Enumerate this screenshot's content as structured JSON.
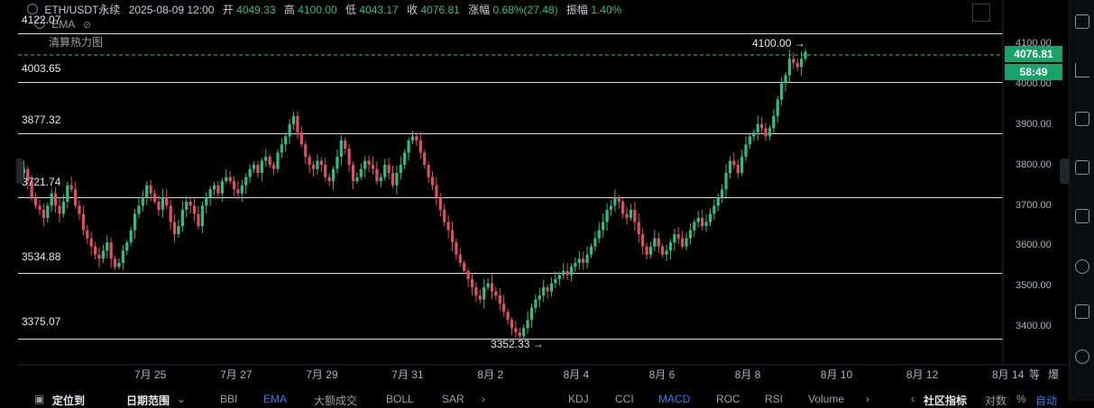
{
  "header": {
    "symbol": "ETH/USDT永续",
    "timestamp": "2025-08-09 12:00",
    "open_label": "开",
    "open": "4049.33",
    "high_label": "高",
    "high": "4100.00",
    "low_label": "低",
    "low": "4043.17",
    "close_label": "收",
    "close": "4076.81",
    "change_label": "涨幅",
    "change": "0.68%(27.48)",
    "amp_label": "振幅",
    "amp": "1.40%"
  },
  "indicators": {
    "ema": "EMA",
    "heatmap": "清算热力图"
  },
  "levels": {
    "top": "4122.07",
    "l1": "4003.65",
    "l2": "3877.32",
    "l3": "3721.74",
    "l4": "3534.88",
    "l5": "3375.07"
  },
  "annotations": {
    "high": "4100.00",
    "low": "3352.33",
    "arrow": "→"
  },
  "price_axis": {
    "ticks": [
      "4100.00",
      "4000.00",
      "3900.00",
      "3800.00",
      "3700.00",
      "3600.00",
      "3500.00",
      "3400.00"
    ],
    "current": "4076.81",
    "countdown": "58:49"
  },
  "time_axis": [
    "7月 25",
    "7月 27",
    "7月 29",
    "7月 31",
    "8月 2",
    "8月 4",
    "8月 6",
    "8月 8",
    "8月 10",
    "8月 12",
    "8月 14"
  ],
  "axis_controls": {
    "a": "等",
    "b": "爆"
  },
  "bottom": {
    "locate": "定位到",
    "date_range": "日期范围",
    "tabs_left": [
      "BBI",
      "EMA",
      "大额成交",
      "BOLL",
      "SAR"
    ],
    "tabs_right": [
      "KDJ",
      "CCI",
      "MACD",
      "ROC",
      "RSI",
      "Volume"
    ],
    "community": "社区指标",
    "log": "对数",
    "percent": "%",
    "auto": "自动"
  },
  "colors": {
    "up": "#2ebd85",
    "down": "#e04f5f",
    "accent": "#2f7cf6",
    "tag": "#1aa26b"
  },
  "chart_data": {
    "type": "candlestick",
    "title": "",
    "xlabel": "",
    "ylabel": "",
    "x_start": "2025-07-24",
    "x_end": "2025-08-09",
    "ylim": [
      3330,
      4160
    ],
    "closes": [
      3780,
      3790,
      3760,
      3720,
      3700,
      3690,
      3670,
      3700,
      3730,
      3700,
      3680,
      3710,
      3750,
      3740,
      3700,
      3680,
      3640,
      3620,
      3600,
      3580,
      3570,
      3590,
      3610,
      3570,
      3550,
      3560,
      3590,
      3610,
      3640,
      3680,
      3700,
      3720,
      3750,
      3730,
      3710,
      3690,
      3720,
      3700,
      3660,
      3630,
      3650,
      3690,
      3710,
      3700,
      3680,
      3650,
      3700,
      3720,
      3740,
      3750,
      3730,
      3760,
      3770,
      3760,
      3740,
      3730,
      3750,
      3770,
      3790,
      3800,
      3780,
      3810,
      3820,
      3800,
      3790,
      3830,
      3850,
      3870,
      3900,
      3920,
      3880,
      3850,
      3820,
      3800,
      3790,
      3810,
      3800,
      3770,
      3760,
      3790,
      3820,
      3860,
      3840,
      3800,
      3760,
      3770,
      3790,
      3810,
      3800,
      3790,
      3760,
      3770,
      3800,
      3780,
      3750,
      3780,
      3800,
      3830,
      3860,
      3870,
      3860,
      3830,
      3800,
      3770,
      3750,
      3720,
      3690,
      3660,
      3640,
      3610,
      3580,
      3560,
      3540,
      3520,
      3500,
      3480,
      3470,
      3500,
      3510,
      3490,
      3480,
      3460,
      3440,
      3420,
      3400,
      3390,
      3380,
      3400,
      3420,
      3450,
      3470,
      3480,
      3500,
      3490,
      3510,
      3520,
      3530,
      3540,
      3530,
      3550,
      3560,
      3570,
      3560,
      3580,
      3600,
      3620,
      3640,
      3660,
      3690,
      3700,
      3720,
      3710,
      3680,
      3670,
      3690,
      3660,
      3630,
      3600,
      3580,
      3600,
      3620,
      3600,
      3580,
      3590,
      3610,
      3630,
      3620,
      3600,
      3620,
      3640,
      3660,
      3670,
      3650,
      3660,
      3680,
      3700,
      3720,
      3740,
      3780,
      3810,
      3800,
      3780,
      3820,
      3850,
      3870,
      3880,
      3900,
      3890,
      3870,
      3890,
      3920,
      3960,
      4000,
      4020,
      4060,
      4050,
      4040,
      4060,
      4077
    ]
  }
}
